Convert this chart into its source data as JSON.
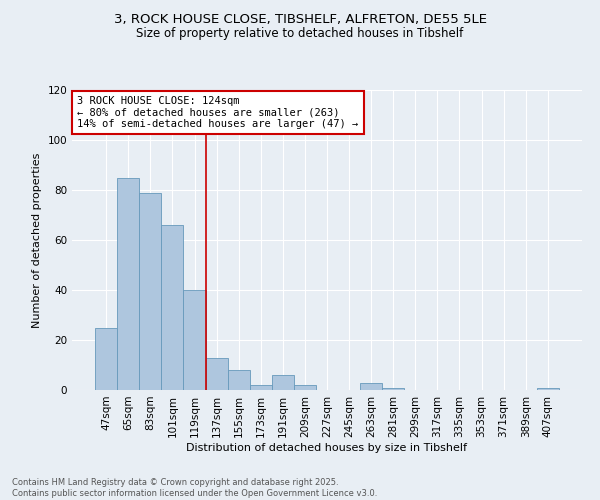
{
  "title_line1": "3, ROCK HOUSE CLOSE, TIBSHELF, ALFRETON, DE55 5LE",
  "title_line2": "Size of property relative to detached houses in Tibshelf",
  "xlabel": "Distribution of detached houses by size in Tibshelf",
  "ylabel": "Number of detached properties",
  "categories": [
    "47sqm",
    "65sqm",
    "83sqm",
    "101sqm",
    "119sqm",
    "137sqm",
    "155sqm",
    "173sqm",
    "191sqm",
    "209sqm",
    "227sqm",
    "245sqm",
    "263sqm",
    "281sqm",
    "299sqm",
    "317sqm",
    "335sqm",
    "353sqm",
    "371sqm",
    "389sqm",
    "407sqm"
  ],
  "values": [
    25,
    85,
    79,
    66,
    40,
    13,
    8,
    2,
    6,
    2,
    0,
    0,
    3,
    1,
    0,
    0,
    0,
    0,
    0,
    0,
    1
  ],
  "bar_color": "#aec6de",
  "bar_edge_color": "#6699bb",
  "ref_line_x": 4.5,
  "annotation_line1": "3 ROCK HOUSE CLOSE: 124sqm",
  "annotation_line2": "← 80% of detached houses are smaller (263)",
  "annotation_line3": "14% of semi-detached houses are larger (47) →",
  "annotation_box_color": "#ffffff",
  "annotation_box_edge": "#cc0000",
  "ref_line_color": "#cc0000",
  "footer_line1": "Contains HM Land Registry data © Crown copyright and database right 2025.",
  "footer_line2": "Contains public sector information licensed under the Open Government Licence v3.0.",
  "background_color": "#e8eef4",
  "ylim": [
    0,
    120
  ],
  "yticks": [
    0,
    20,
    40,
    60,
    80,
    100,
    120
  ]
}
